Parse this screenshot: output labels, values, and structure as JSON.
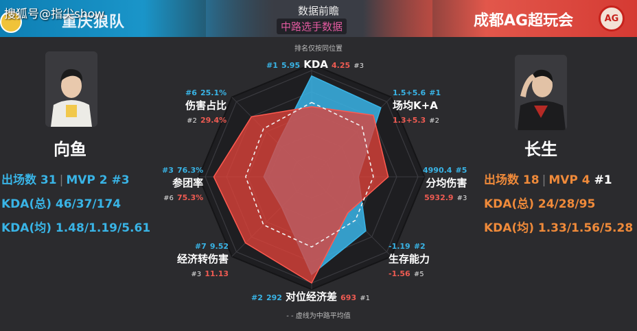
{
  "watermark": "搜狐号@指尖show",
  "header": {
    "title": "数据前瞻",
    "subtitle": "中路选手数据",
    "team_left": "重庆狼队",
    "team_right": "成都AG超玩会",
    "team_right_logo_text": "AG"
  },
  "notes": {
    "rank_note": "排名仅按同位置",
    "avg_note": "- - 虚线为中路平均值"
  },
  "player_left": {
    "name": "向鱼",
    "games_label": "出场数 31",
    "mvp_label": "MVP 2",
    "mvp_rank": "#3",
    "kda_total": "KDA(总) 46/37/174",
    "kda_avg": "KDA(均) 1.48/1.19/5.61"
  },
  "player_right": {
    "name": "长生",
    "games_label": "出场数 18",
    "mvp_label": "MVP 4",
    "mvp_rank": "#1",
    "kda_total": "KDA(总) 24/28/95",
    "kda_avg": "KDA(均) 1.33/1.56/5.28"
  },
  "colors": {
    "blue": "#39b4e6",
    "red": "#e0423a",
    "orange": "#ef8a3a",
    "grid": "#151517"
  },
  "axes": [
    {
      "name": "KDA",
      "blue_value": "5.95",
      "blue_rank": "#1",
      "red_value": "4.25",
      "red_rank": "#3"
    },
    {
      "name": "场均K+A",
      "blue_value": "1.5+5.6",
      "blue_rank": "#1",
      "red_value": "1.3+5.3",
      "red_rank": "#2"
    },
    {
      "name": "分均伤害",
      "blue_value": "4990.4",
      "blue_rank": "#5",
      "red_value": "5932.9",
      "red_rank": "#3"
    },
    {
      "name": "生存能力",
      "blue_value": "-1.19",
      "blue_rank": "#2",
      "red_value": "-1.56",
      "red_rank": "#5"
    },
    {
      "name": "对位经济差",
      "blue_value": "292",
      "blue_rank": "#2",
      "red_value": "693",
      "red_rank": "#1"
    },
    {
      "name": "经济转伤害",
      "blue_value": "9.52",
      "blue_rank": "#7",
      "red_value": "11.13",
      "red_rank": "#3"
    },
    {
      "name": "参团率",
      "blue_value": "76.3%",
      "blue_rank": "#3",
      "red_value": "75.3%",
      "red_rank": "#6"
    },
    {
      "name": "伤害占比",
      "blue_value": "25.1%",
      "blue_rank": "#6",
      "red_value": "29.4%",
      "red_rank": "#2"
    }
  ],
  "radar": {
    "blue": [
      0.95,
      0.92,
      0.44,
      0.72,
      0.92,
      0.4,
      0.45,
      0.45
    ],
    "red": [
      0.66,
      0.82,
      0.72,
      0.48,
      1.0,
      0.88,
      0.92,
      0.8
    ],
    "avg": [
      0.7,
      0.67,
      0.58,
      0.58,
      0.66,
      0.64,
      0.62,
      0.64
    ]
  }
}
